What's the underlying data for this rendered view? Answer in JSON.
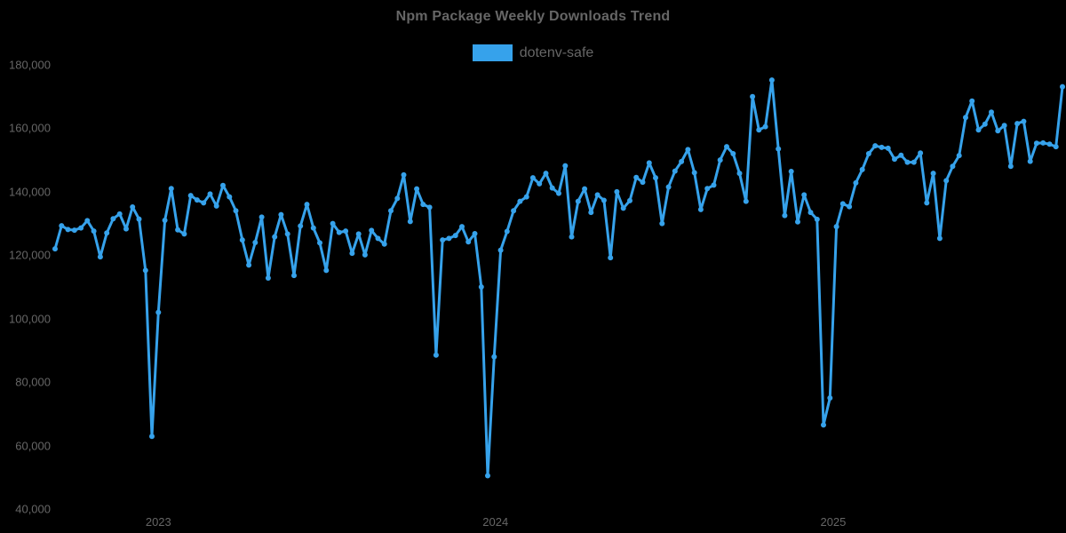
{
  "title": "Npm Package Weekly Downloads Trend",
  "legend": {
    "items": [
      {
        "label": "dotenv-safe",
        "color": "#36A2EB"
      }
    ]
  },
  "colors": {
    "background": "#000000",
    "text": "#666666",
    "line": "#36A2EB"
  },
  "chart_data": {
    "type": "line",
    "title": "Npm Package Weekly Downloads Trend",
    "x_unit": "week",
    "x_range_note": "weekly points, ~Sep 2022 to ~Sep 2025",
    "grid": false,
    "legend_position": "top",
    "marker": "circle",
    "ylim": [
      40000,
      180000
    ],
    "y_ticks": [
      {
        "value": 40000,
        "label": "40,000"
      },
      {
        "value": 60000,
        "label": "60,000"
      },
      {
        "value": 80000,
        "label": "80,000"
      },
      {
        "value": 100000,
        "label": "100,000"
      },
      {
        "value": 120000,
        "label": "120,000"
      },
      {
        "value": 140000,
        "label": "140,000"
      },
      {
        "value": 160000,
        "label": "160,000"
      },
      {
        "value": 180000,
        "label": "180,000"
      }
    ],
    "x_ticks": [
      {
        "label": "2023",
        "week_index": 16
      },
      {
        "label": "2024",
        "week_index": 68.2
      },
      {
        "label": "2025",
        "week_index": 120.5
      }
    ],
    "series": [
      {
        "name": "dotenv-safe",
        "color": "#36A2EB",
        "values": [
          122000,
          129300,
          128100,
          127900,
          128600,
          130900,
          127600,
          119500,
          127000,
          131500,
          133000,
          128300,
          135200,
          131400,
          115200,
          62900,
          102000,
          131000,
          141000,
          128000,
          126700,
          138800,
          137400,
          136500,
          139300,
          135500,
          142000,
          138400,
          134000,
          124800,
          116900,
          124000,
          132000,
          112800,
          125800,
          132800,
          126700,
          113600,
          129200,
          136000,
          128600,
          123900,
          115200,
          130000,
          127200,
          127600,
          120600,
          126700,
          120100,
          127800,
          125300,
          123500,
          134000,
          137900,
          145300,
          130600,
          140900,
          136000,
          135100,
          88500,
          124800,
          125300,
          126200,
          129000,
          124200,
          126800,
          110000,
          50500,
          88000,
          121600,
          127500,
          134000,
          137000,
          138400,
          144400,
          142500,
          145800,
          141200,
          139500,
          148200,
          125800,
          137000,
          140900,
          133500,
          139000,
          137300,
          119200,
          140000,
          134800,
          137200,
          144500,
          143000,
          149100,
          144400,
          130000,
          141500,
          146500,
          149500,
          153300,
          146000,
          134400,
          141000,
          142100,
          150000,
          154200,
          152000,
          145800,
          137000,
          170000,
          159500,
          160500,
          175200,
          153500,
          132500,
          146400,
          130500,
          139000,
          133500,
          131300,
          66500,
          75000,
          129000,
          136200,
          135300,
          142800,
          147000,
          152000,
          154500,
          154000,
          153700,
          150300,
          151500,
          149300,
          149300,
          152200,
          136500,
          145800,
          125300,
          143500,
          148000,
          151400,
          163400,
          168600,
          159500,
          161300,
          165100,
          159200,
          160900,
          148000,
          161500,
          162200,
          149600,
          155300,
          155400,
          155000,
          154200,
          173100
        ]
      }
    ]
  }
}
